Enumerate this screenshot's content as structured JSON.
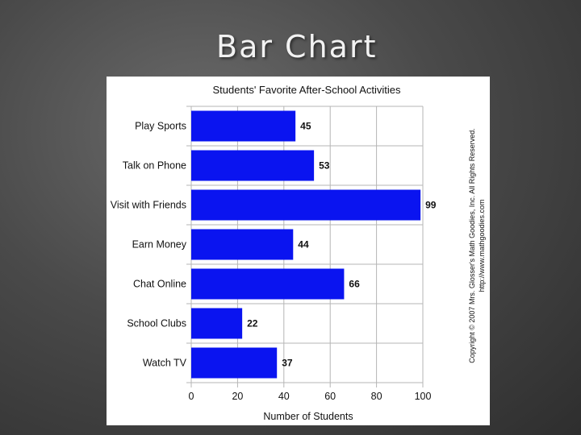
{
  "slide": {
    "title": "Bar Chart"
  },
  "copyright": {
    "line1": "Copyright © 2007 Mrs. Glosser's Math Goodies, Inc. All Rights Reserved.",
    "line2": "http://www.mathgoodies.com"
  },
  "colors": {
    "bar": "#0a14f0",
    "grid": "#b5b5b5"
  },
  "chart_data": {
    "type": "bar",
    "orientation": "horizontal",
    "title": "Students' Favorite After-School Activities",
    "categories": [
      "Play Sports",
      "Talk on Phone",
      "Visit with Friends",
      "Earn Money",
      "Chat Online",
      "School Clubs",
      "Watch TV"
    ],
    "values": [
      45,
      53,
      99,
      44,
      66,
      22,
      37
    ],
    "xlabel": "Number of Students",
    "ylabel": "",
    "xlim": [
      0,
      100
    ],
    "xticks": [
      0,
      20,
      40,
      60,
      80,
      100
    ],
    "grid": true,
    "data_labels": true
  }
}
